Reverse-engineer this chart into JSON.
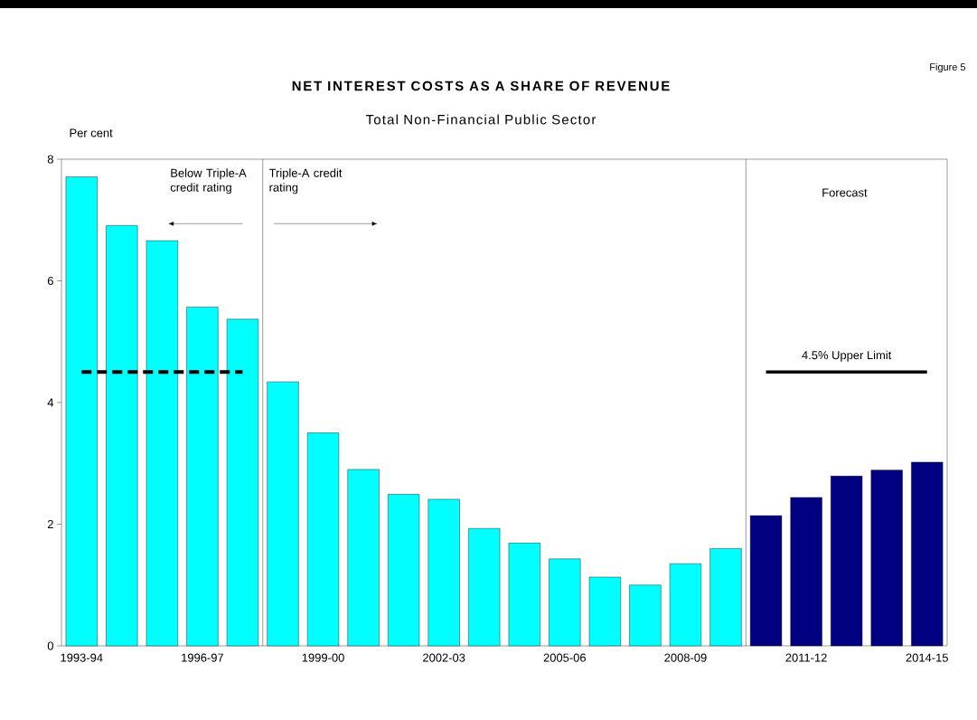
{
  "chart_data": {
    "type": "bar",
    "title": "NET INTEREST COSTS AS A SHARE OF REVENUE",
    "subtitle": "Total Non-Financial Public Sector",
    "ylabel": "Per cent",
    "categories": [
      "1993-94",
      null,
      null,
      "1996-97",
      null,
      null,
      "1999-00",
      null,
      null,
      "2002-03",
      null,
      null,
      "2005-06",
      null,
      null,
      "2008-09",
      null,
      null,
      "2011-12",
      null,
      null,
      "2014-15"
    ],
    "series": [
      {
        "values": [
          7.71,
          6.91,
          6.66,
          5.57,
          5.37,
          4.34,
          3.5,
          2.9,
          2.49,
          2.41,
          1.93,
          1.69,
          1.43,
          1.13,
          1.0,
          1.35,
          1.6,
          2.14,
          2.44,
          2.79,
          2.89,
          3.02
        ],
        "colors": [
          "#00ffff",
          "#00ffff",
          "#00ffff",
          "#00ffff",
          "#00ffff",
          "#00ffff",
          "#00ffff",
          "#00ffff",
          "#00ffff",
          "#00ffff",
          "#00ffff",
          "#00ffff",
          "#00ffff",
          "#00ffff",
          "#00ffff",
          "#00ffff",
          "#00ffff",
          "#000080",
          "#000080",
          "#000080",
          "#000080",
          "#000080"
        ]
      },
      {
        "type": "line",
        "values": [
          4.5,
          4.5,
          4.5,
          4.5,
          4.5,
          null,
          null,
          null,
          null,
          null,
          null,
          null,
          null,
          null,
          null,
          null,
          null,
          null,
          null,
          null,
          null,
          null
        ],
        "color": "#000000",
        "line_style": "dashed"
      },
      {
        "type": "line",
        "values": [
          null,
          null,
          null,
          null,
          null,
          null,
          null,
          null,
          null,
          null,
          null,
          null,
          null,
          null,
          null,
          null,
          null,
          4.5,
          4.5,
          4.5,
          4.5,
          4.5
        ],
        "color": "#000000",
        "line_style": "solid"
      }
    ],
    "ylim": [
      0,
      8
    ],
    "yticks": [
      0,
      2,
      4,
      6,
      8
    ],
    "annotations": [
      "Figure 5",
      "Below Triple-A credit rating",
      "Triple-A credit rating",
      "Forecast",
      "4.5% Upper Limit"
    ],
    "grid": false
  }
}
